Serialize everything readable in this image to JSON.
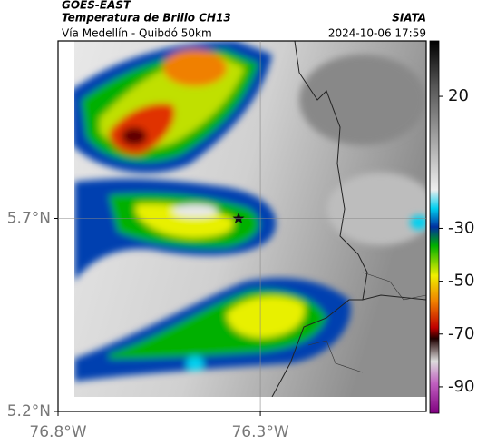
{
  "header": {
    "satellite": "GOES-EAST",
    "product": "Temperatura de Brillo CH13",
    "region": "Vía Medellín - Quibdó 50km",
    "source": "SIATA",
    "timestamp": "2024-10-06 17:59"
  },
  "map": {
    "xlim": [
      -76.8,
      -75.89
    ],
    "ylim": [
      5.2,
      6.16
    ],
    "xticks": [
      {
        "value": -76.8,
        "label": "76.8°W"
      },
      {
        "value": -76.3,
        "label": "76.3°W"
      }
    ],
    "yticks": [
      {
        "value": 5.7,
        "label": "5.7°N"
      },
      {
        "value": 5.2,
        "label": "5.2°N"
      }
    ],
    "grid": true
  },
  "colorbar": {
    "lim": [
      -100,
      41
    ],
    "ticks": [
      20,
      -30,
      -50,
      -70,
      -90
    ]
  }
}
